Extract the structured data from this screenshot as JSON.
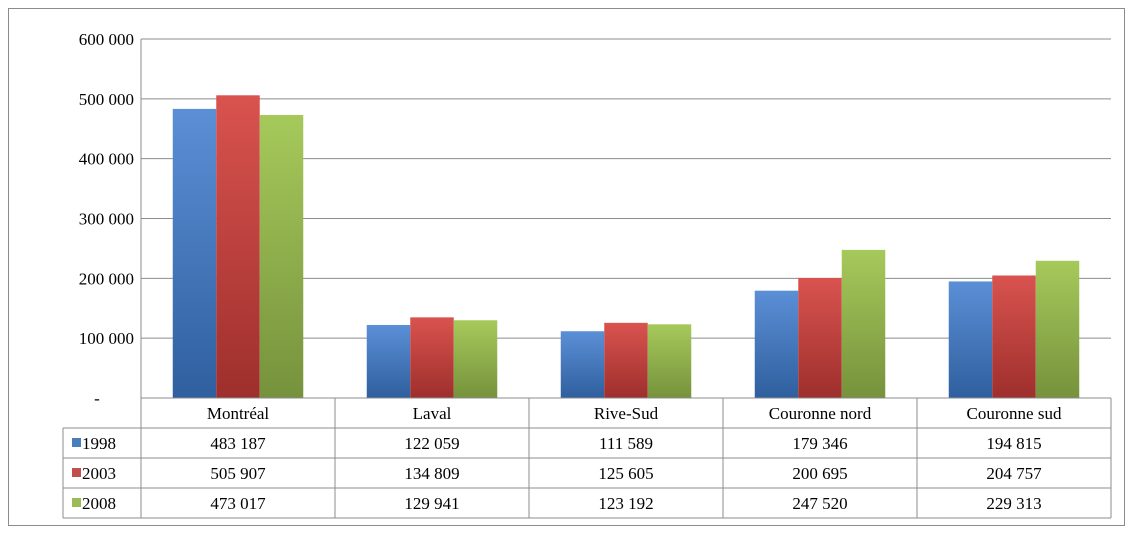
{
  "chart_data": {
    "type": "bar",
    "categories": [
      "Montréal",
      "Laval",
      "Rive-Sud",
      "Couronne nord",
      "Couronne sud"
    ],
    "series": [
      {
        "name": "1998",
        "values": [
          483187,
          122059,
          111589,
          179346,
          194815
        ],
        "value_labels": [
          "483 187",
          "122 059",
          "111 589",
          "179 346",
          "194 815"
        ],
        "color": "#4a7ebb",
        "color_light": "#5b8fd6",
        "color_dark": "#2f5f9e"
      },
      {
        "name": "2003",
        "values": [
          505907,
          134809,
          125605,
          200695,
          204757
        ],
        "value_labels": [
          "505 907",
          "134 809",
          "125 605",
          "200 695",
          "204 757"
        ],
        "color": "#c0504d",
        "color_light": "#d9534f",
        "color_dark": "#9e2f2c"
      },
      {
        "name": "2008",
        "values": [
          473017,
          129941,
          123192,
          247520,
          229313
        ],
        "value_labels": [
          "473 017",
          "129 941",
          "123 192",
          "247 520",
          "229 313"
        ],
        "color": "#9bbb59",
        "color_light": "#a6c95b",
        "color_dark": "#76923c"
      }
    ],
    "yticks": [
      0,
      100000,
      200000,
      300000,
      400000,
      500000,
      600000
    ],
    "ytick_labels": [
      "-",
      "100 000",
      "200 000",
      "300 000",
      "400 000",
      "500 000",
      "600 000"
    ],
    "ylim": [
      0,
      600000
    ],
    "grid": true,
    "legend": "data-table"
  }
}
